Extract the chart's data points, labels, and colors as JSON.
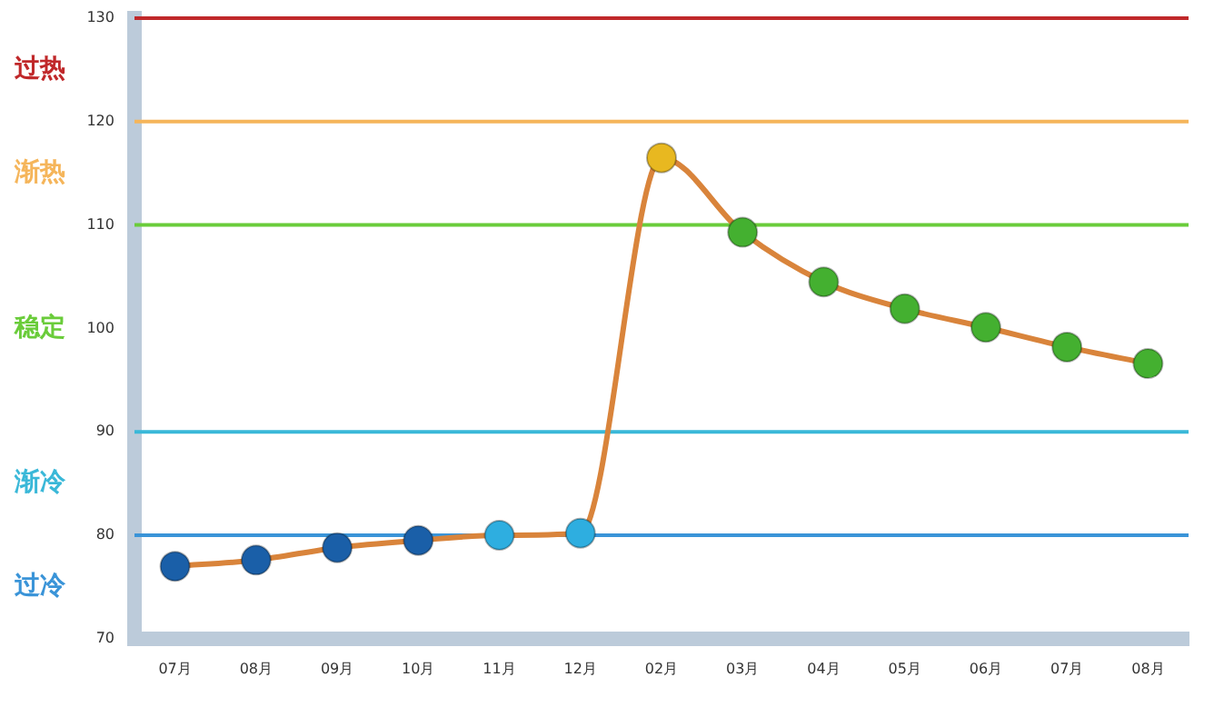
{
  "chart_data": {
    "type": "line",
    "categories": [
      "07月",
      "08月",
      "09月",
      "10月",
      "11月",
      "12月",
      "02月",
      "03月",
      "04月",
      "05月",
      "06月",
      "07月",
      "08月"
    ],
    "series": [
      {
        "color": "#d9843b",
        "values": [
          77,
          77.6,
          78.8,
          79.5,
          80,
          80.2,
          116.5,
          109.3,
          104.5,
          101.9,
          100.1,
          98.2,
          96.6
        ],
        "colors": [
          "#1a5fa8",
          "#1a5fa8",
          "#1a5fa8",
          "#1a5fa8",
          "#2eaee0",
          "#2eaee0",
          "#e8b820",
          "#44b030",
          "#44b030",
          "#44b030",
          "#44b030",
          "#44b030",
          "#44b030"
        ]
      }
    ],
    "ylim": [
      70,
      130
    ],
    "yticks": [
      70,
      80,
      90,
      100,
      110,
      120,
      130
    ],
    "grid": false,
    "legend": false,
    "marker": "circle",
    "line_style": "solid",
    "ref_lines": [
      {
        "axis": "y",
        "value": 130,
        "color": "#c0282a"
      },
      {
        "axis": "y",
        "value": 120,
        "color": "#f5b55a"
      },
      {
        "axis": "y",
        "value": 110,
        "color": "#6acc3a"
      },
      {
        "axis": "y",
        "value": 90,
        "color": "#3ab8d8"
      },
      {
        "axis": "y",
        "value": 80,
        "color": "#3a94d8"
      }
    ],
    "annotations": [
      "过热",
      "渐热",
      "稳定",
      "渐冷",
      "过冷"
    ]
  }
}
